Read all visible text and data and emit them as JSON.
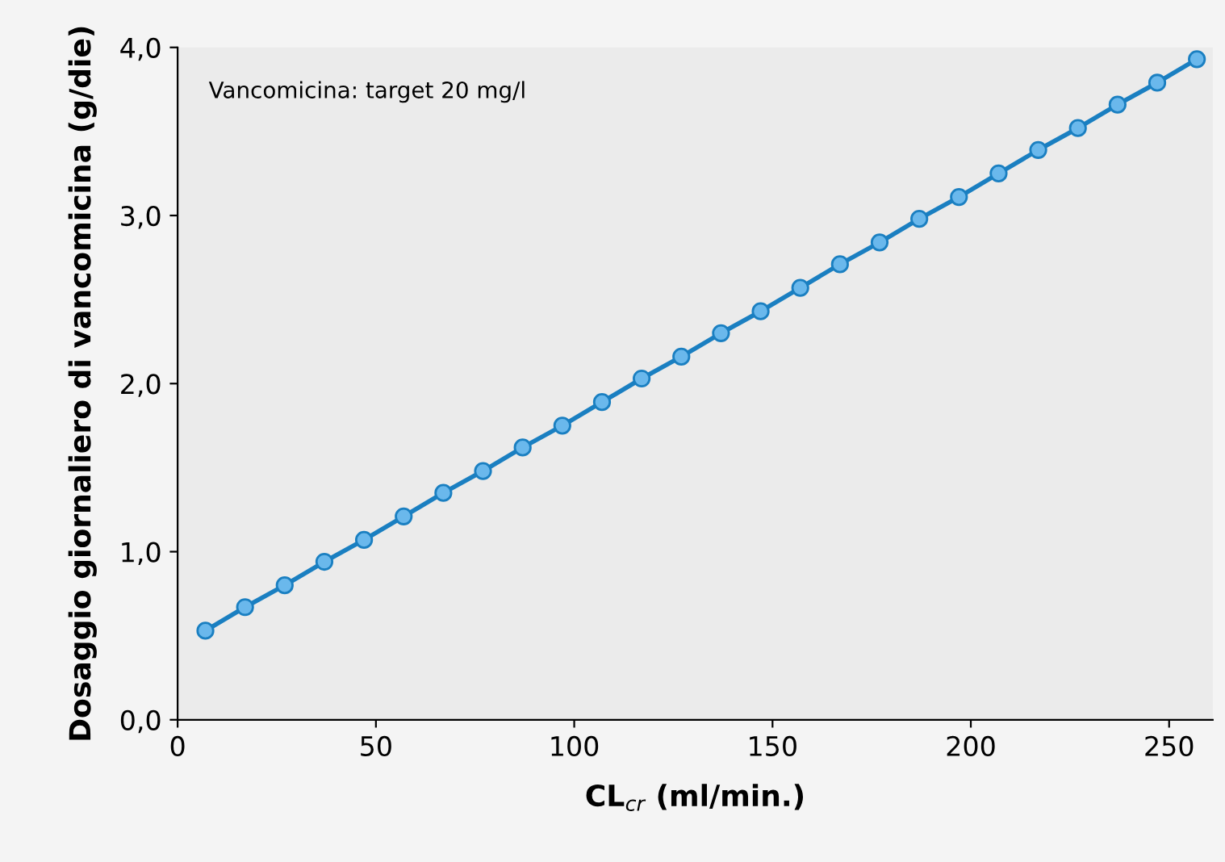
{
  "chart_data": {
    "type": "line",
    "xlabel": "CL$_{cr}$ (ml/min.)",
    "ylabel": "Dosaggio giornaliero di vancomicina (g/die)",
    "annotations": [
      "Vancomicina: target 20 mg/l"
    ],
    "x": [
      7,
      17,
      27,
      37,
      47,
      57,
      67,
      77,
      87,
      97,
      107,
      117,
      127,
      137,
      147,
      157,
      167,
      177,
      187,
      197,
      207,
      217,
      227,
      237,
      247,
      257
    ],
    "series": [
      {
        "color": "#1a7fc1",
        "values": [
          0.53,
          0.67,
          0.8,
          0.94,
          1.07,
          1.21,
          1.35,
          1.48,
          1.62,
          1.75,
          1.89,
          2.03,
          2.16,
          2.3,
          2.43,
          2.57,
          2.71,
          2.84,
          2.98,
          3.11,
          3.25,
          3.39,
          3.52,
          3.66,
          3.79,
          3.93
        ]
      }
    ],
    "xlim": [
      0,
      261
    ],
    "xticks": [
      0,
      50,
      100,
      150,
      200,
      250
    ],
    "ylim": [
      0,
      4
    ],
    "yticks": [
      {
        "value": 0,
        "label": "0,0"
      },
      {
        "value": 1,
        "label": "1,0"
      },
      {
        "value": 2,
        "label": "2,0"
      },
      {
        "value": 3,
        "label": "3,0"
      },
      {
        "value": 4,
        "label": "4,0"
      }
    ],
    "marker": "circle",
    "line_style": "solid",
    "grid": false,
    "legend": false
  }
}
